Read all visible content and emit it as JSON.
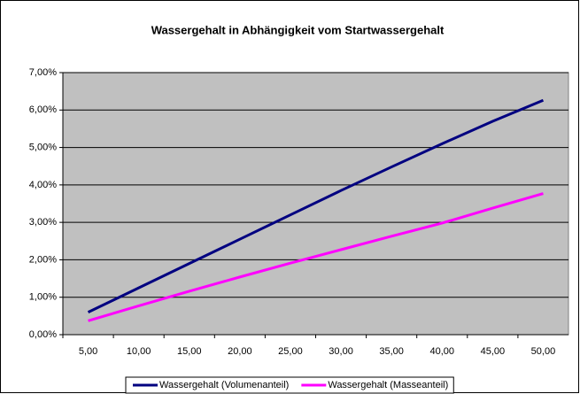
{
  "chart_data": {
    "type": "line",
    "title": "Wassergehalt in Abhängigkeit vom Startwassergehalt",
    "categories": [
      "5,00",
      "10,00",
      "15,00",
      "20,00",
      "25,00",
      "30,00",
      "35,00",
      "40,00",
      "45,00",
      "50,00"
    ],
    "series": [
      {
        "name": "Wassergehalt (Volumenanteil)",
        "color": "#000080",
        "values": [
          0.6,
          1.25,
          1.9,
          2.55,
          3.2,
          3.85,
          4.48,
          5.1,
          5.7,
          6.26
        ]
      },
      {
        "name": "Wassergehalt (Masseanteil)",
        "color": "#ff00ff",
        "values": [
          0.37,
          0.77,
          1.16,
          1.54,
          1.91,
          2.27,
          2.63,
          2.98,
          3.38,
          3.77
        ]
      }
    ],
    "ylim": [
      0,
      7
    ],
    "yticks": [
      {
        "value": 0,
        "label": "0,00%"
      },
      {
        "value": 1,
        "label": "1,00%"
      },
      {
        "value": 2,
        "label": "2,00%"
      },
      {
        "value": 3,
        "label": "3,00%"
      },
      {
        "value": 4,
        "label": "4,00%"
      },
      {
        "value": 5,
        "label": "5,00%"
      },
      {
        "value": 6,
        "label": "6,00%"
      },
      {
        "value": 7,
        "label": "7,00%"
      }
    ],
    "grid": true,
    "plot_background": "#c0c0c0",
    "legend": "bottom"
  }
}
